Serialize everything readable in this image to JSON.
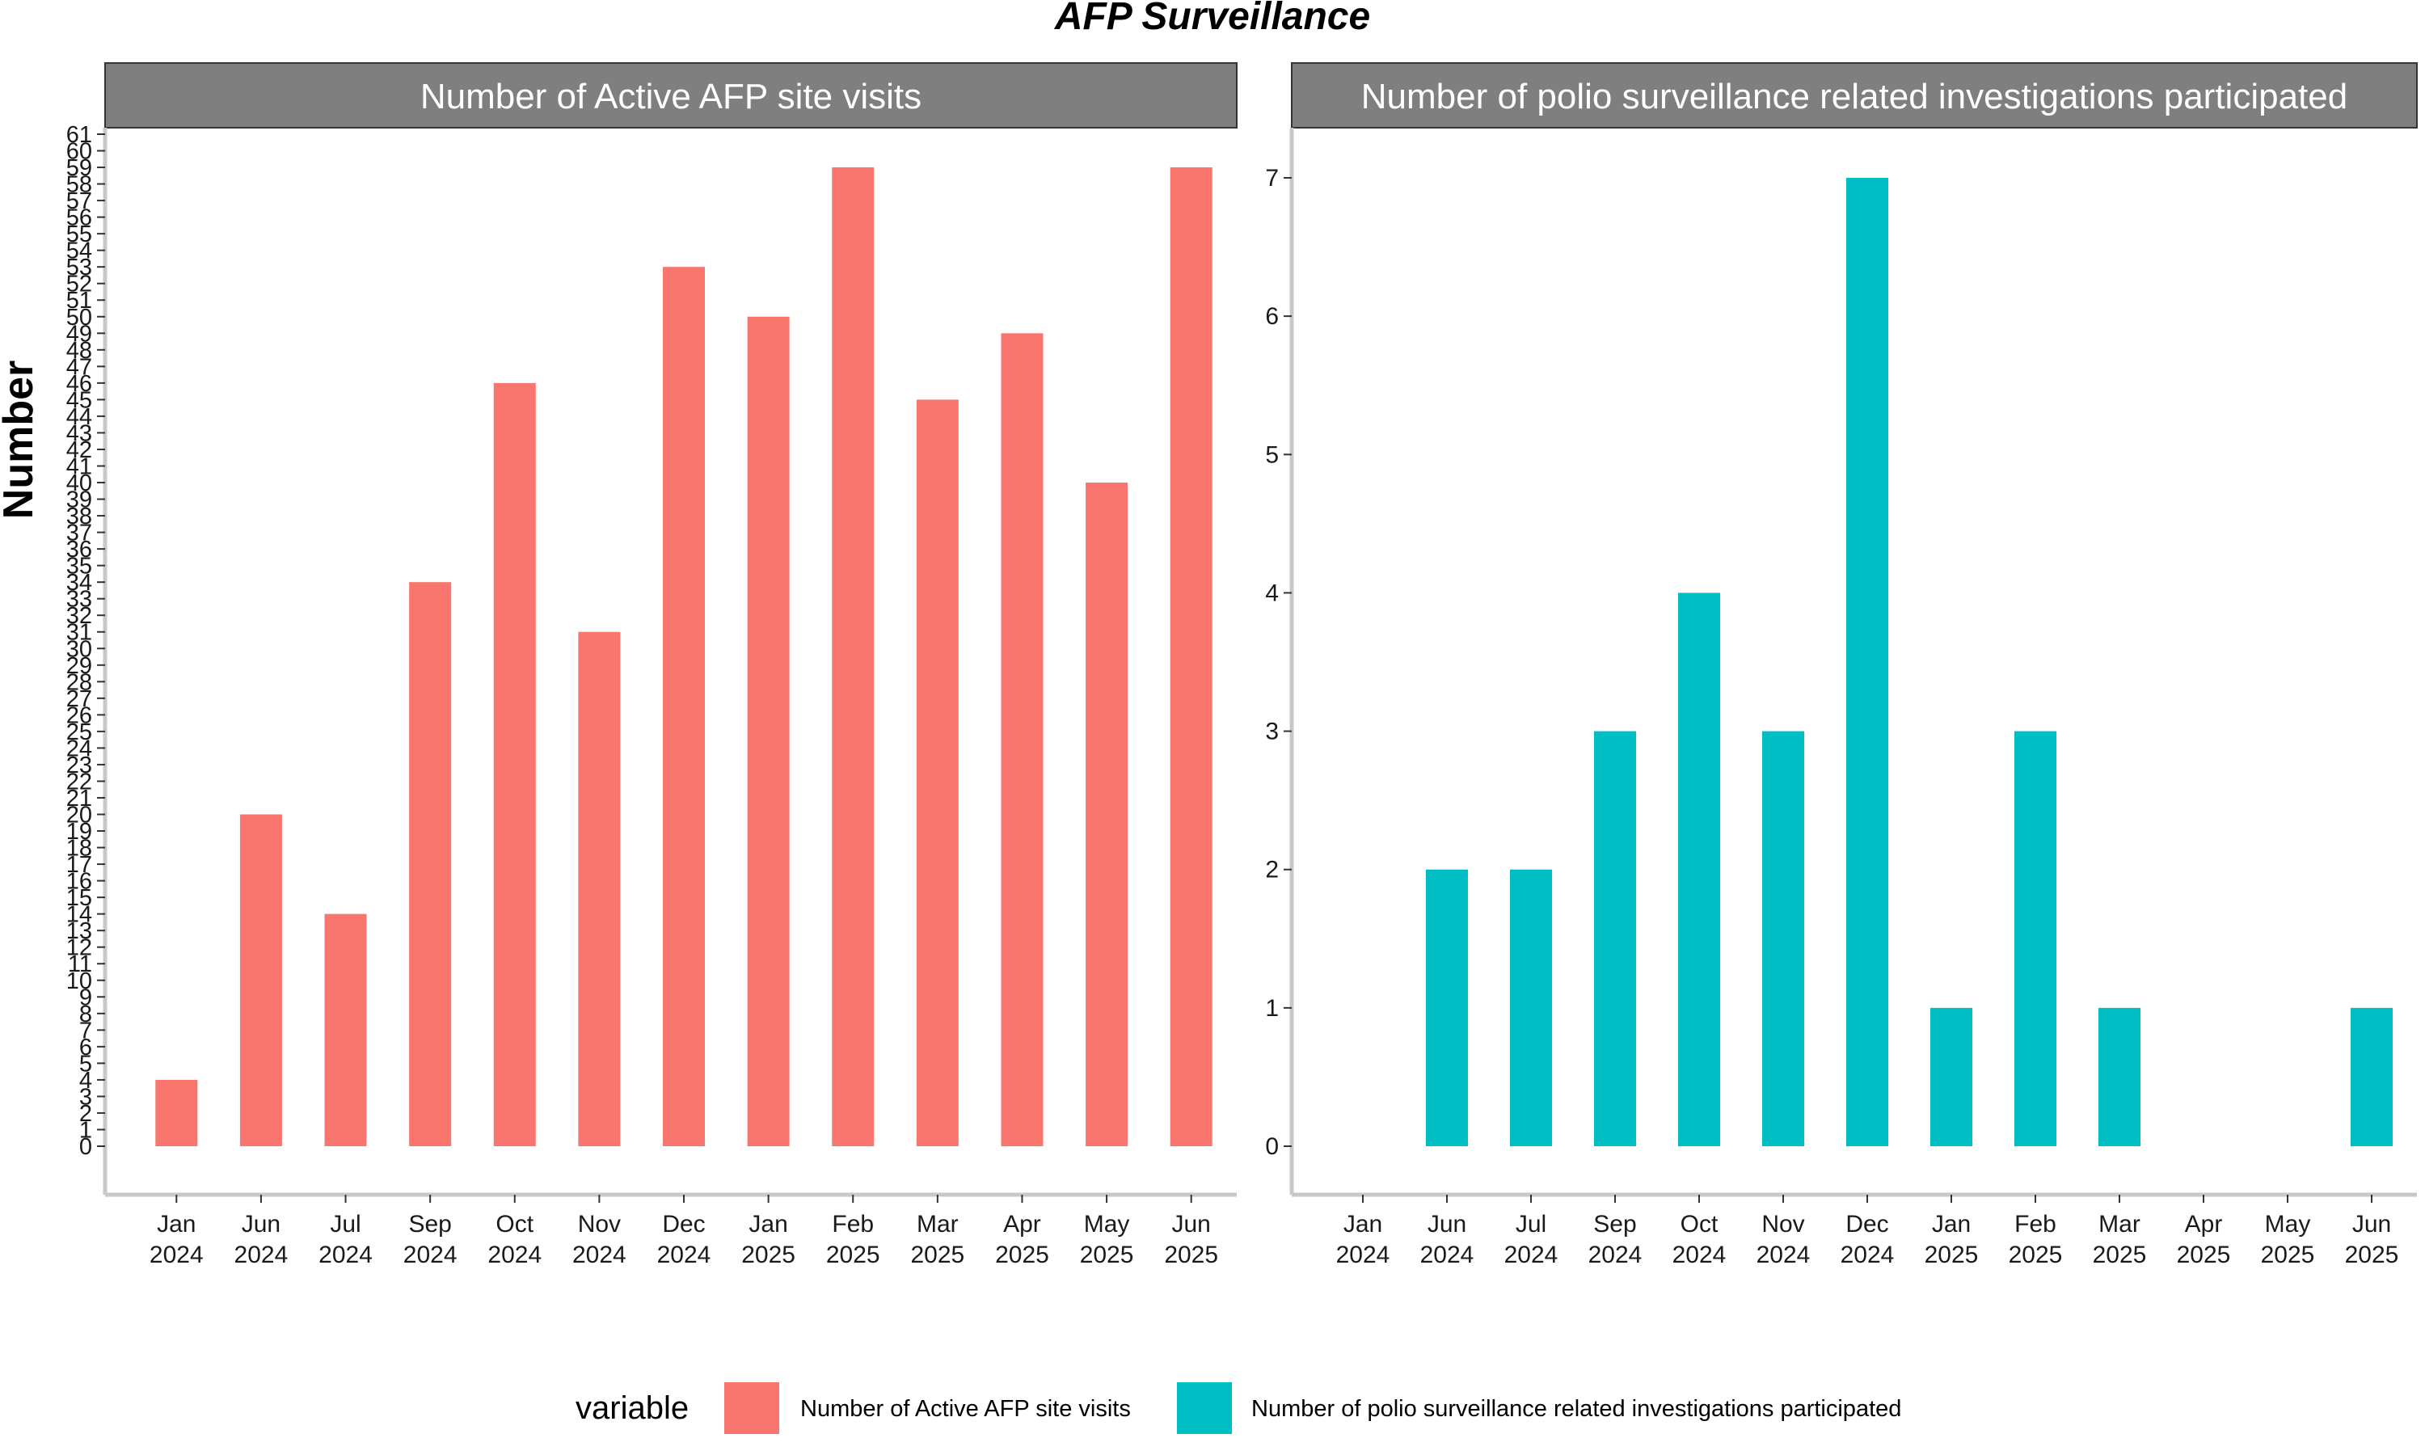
{
  "chart_data": {
    "type": "bar",
    "title": "AFP Surveillance",
    "ylabel": "Number",
    "categories": [
      [
        "Jan",
        "2024"
      ],
      [
        "Jun",
        "2024"
      ],
      [
        "Jul",
        "2024"
      ],
      [
        "Sep",
        "2024"
      ],
      [
        "Oct",
        "2024"
      ],
      [
        "Nov",
        "2024"
      ],
      [
        "Dec",
        "2024"
      ],
      [
        "Jan",
        "2025"
      ],
      [
        "Feb",
        "2025"
      ],
      [
        "Mar",
        "2025"
      ],
      [
        "Apr",
        "2025"
      ],
      [
        "May",
        "2025"
      ],
      [
        "Jun",
        "2025"
      ]
    ],
    "panels": [
      {
        "strip": "Number of Active AFP site visits",
        "series_name": "Number of Active AFP site visits",
        "color": "#F8766D",
        "values": [
          4,
          20,
          14,
          34,
          46,
          31,
          53,
          50,
          59,
          45,
          49,
          40,
          59
        ],
        "ylim": [
          0,
          61
        ],
        "yticks": [
          0,
          1,
          2,
          3,
          4,
          5,
          6,
          7,
          8,
          9,
          10,
          11,
          12,
          13,
          14,
          15,
          16,
          17,
          18,
          19,
          20,
          21,
          22,
          23,
          24,
          25,
          26,
          27,
          28,
          29,
          30,
          31,
          32,
          33,
          34,
          35,
          36,
          37,
          38,
          39,
          40,
          41,
          42,
          43,
          44,
          45,
          46,
          47,
          48,
          49,
          50,
          51,
          52,
          53,
          54,
          55,
          56,
          57,
          58,
          59,
          60,
          61
        ]
      },
      {
        "strip": "Number of polio surveillance related investigations participated",
        "series_name": "Number of polio surveillance related investigations participated",
        "color": "#00BFC4",
        "values": [
          0,
          2,
          2,
          3,
          4,
          3,
          7,
          1,
          3,
          1,
          0,
          0,
          1
        ],
        "ylim": [
          0,
          7
        ],
        "yticks": [
          0,
          1,
          2,
          3,
          4,
          5,
          6,
          7
        ]
      }
    ],
    "legend": {
      "title": "variable",
      "position": "bottom",
      "entries": [
        {
          "label": "Number of Active AFP site visits",
          "color": "#F8766D"
        },
        {
          "label": "Number of polio surveillance related investigations participated",
          "color": "#00BFC4"
        }
      ]
    },
    "colors": {
      "strip_bg": "#7F7F7F",
      "axis": "#C8C8C8"
    }
  }
}
